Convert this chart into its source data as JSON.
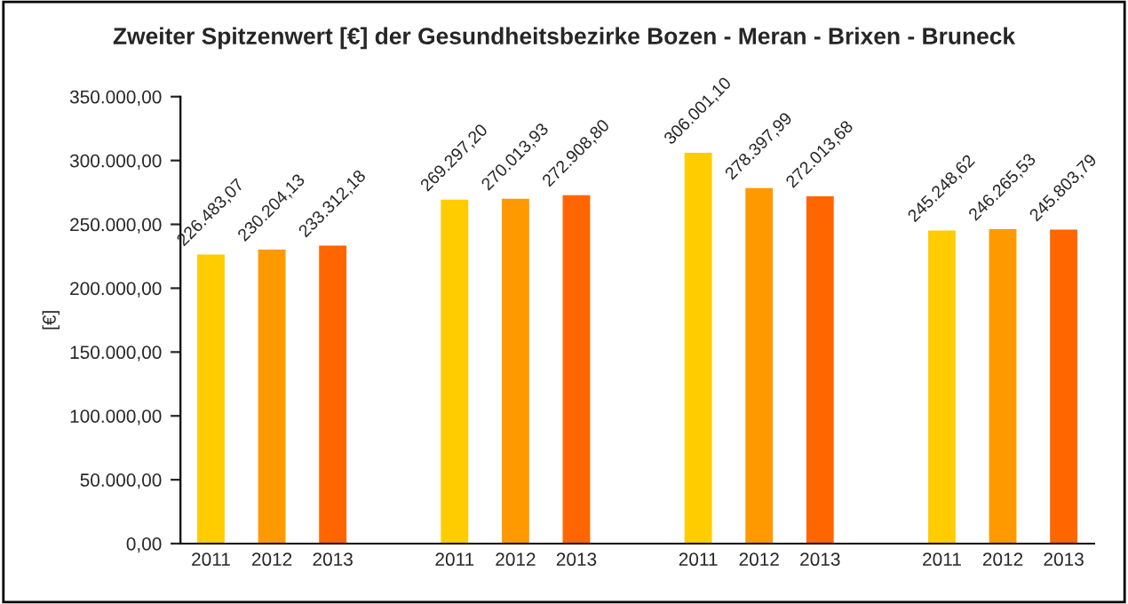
{
  "chart_data": {
    "type": "bar",
    "title": "Zweiter Spitzenwert [€] der Gesundheitsbezirke Bozen - Meran - Brixen - Bruneck",
    "ylabel": "[€]",
    "categories": [
      "2011",
      "2012",
      "2013",
      null,
      "2011",
      "2012",
      "2013",
      null,
      "2011",
      "2012",
      "2013",
      null,
      "2011",
      "2012",
      "2013"
    ],
    "values": [
      226483.07,
      230204.13,
      233312.18,
      null,
      269297.2,
      270013.93,
      272908.8,
      null,
      306001.1,
      278397.99,
      272013.68,
      null,
      245248.62,
      246265.53,
      245803.79
    ],
    "colors": [
      "#ffcc00",
      "#ff9900",
      "#ff6600",
      null,
      "#ffcc00",
      "#ff9900",
      "#ff6600",
      null,
      "#ffcc00",
      "#ff9900",
      "#ff6600",
      null,
      "#ffcc00",
      "#ff9900",
      "#ff6600"
    ],
    "value_labels": [
      "226.483,07",
      "230.204,13",
      "233.312,18",
      null,
      "269.297,20",
      "270.013,93",
      "272.908,80",
      null,
      "306.001,10",
      "278.397,99",
      "272.013,68",
      null,
      "245.248,62",
      "246.265,53",
      "245.803,79"
    ],
    "ylim": [
      0,
      350000
    ],
    "yticks": [
      {
        "value": 0,
        "label": "0,00"
      },
      {
        "value": 50000,
        "label": "50.000,00"
      },
      {
        "value": 100000,
        "label": "100.000,00"
      },
      {
        "value": 150000,
        "label": "150.000,00"
      },
      {
        "value": 200000,
        "label": "200.000,00"
      },
      {
        "value": 250000,
        "label": "250.000,00"
      },
      {
        "value": 300000,
        "label": "300.000,00"
      },
      {
        "value": 350000,
        "label": "350.000,00"
      }
    ],
    "grid": false,
    "legend": false
  }
}
